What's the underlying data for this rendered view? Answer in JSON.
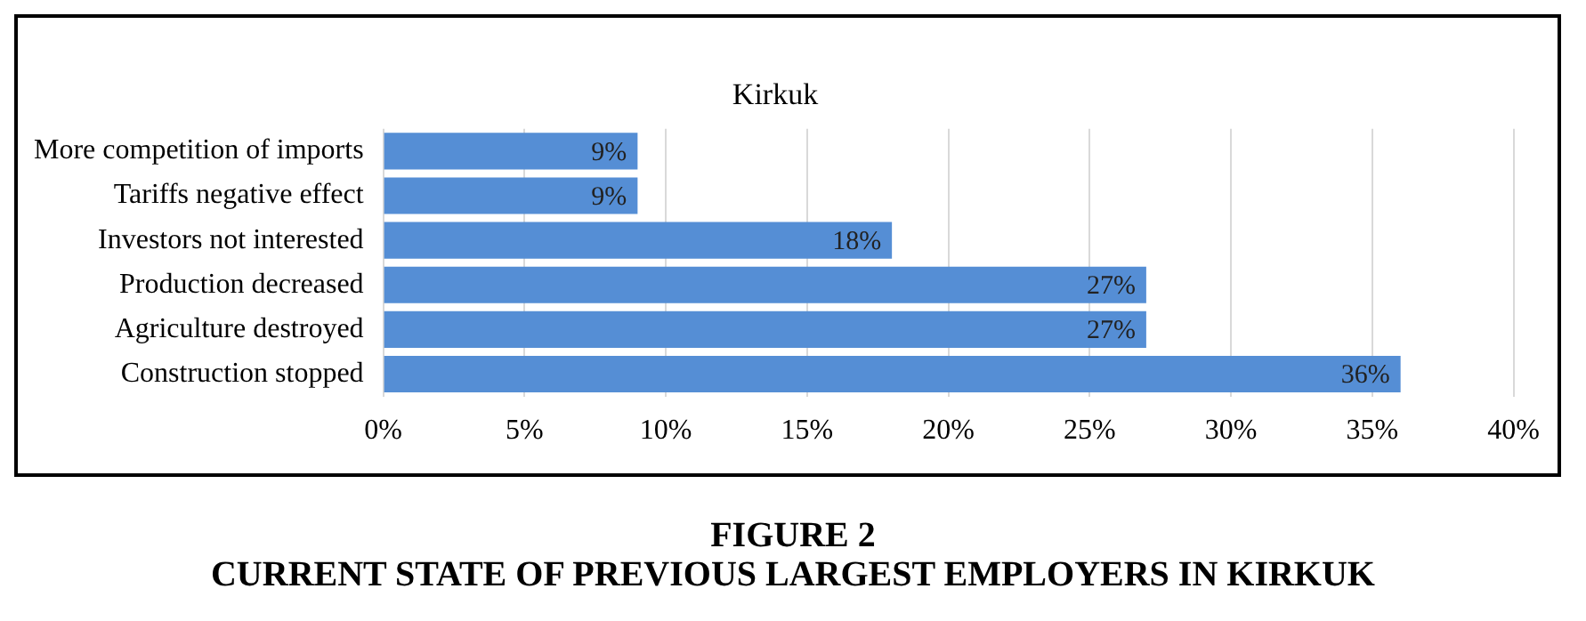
{
  "chart_data": {
    "type": "bar",
    "orientation": "horizontal",
    "title": "Kirkuk",
    "categories": [
      "More competition of imports",
      "Tariffs negative effect",
      "Investors not interested",
      "Production decreased",
      "Agriculture destroyed",
      "Construction stopped"
    ],
    "values": [
      9,
      9,
      18,
      27,
      27,
      36
    ],
    "color": "#558ed5",
    "value_labels": [
      "9%",
      "9%",
      "18%",
      "27%",
      "27%",
      "36%"
    ],
    "xlim": [
      0,
      40
    ],
    "xticks": [
      {
        "value": 0,
        "label": "0%"
      },
      {
        "value": 5,
        "label": "5%"
      },
      {
        "value": 10,
        "label": "10%"
      },
      {
        "value": 15,
        "label": "15%"
      },
      {
        "value": 20,
        "label": "20%"
      },
      {
        "value": 25,
        "label": "25%"
      },
      {
        "value": 30,
        "label": "30%"
      },
      {
        "value": 35,
        "label": "35%"
      },
      {
        "value": 40,
        "label": "40%"
      }
    ],
    "grid": "x",
    "legend": false,
    "annotations": [
      "FIGURE 2",
      "CURRENT STATE OF PREVIOUS LARGEST EMPLOYERS IN KIRKUK"
    ]
  }
}
